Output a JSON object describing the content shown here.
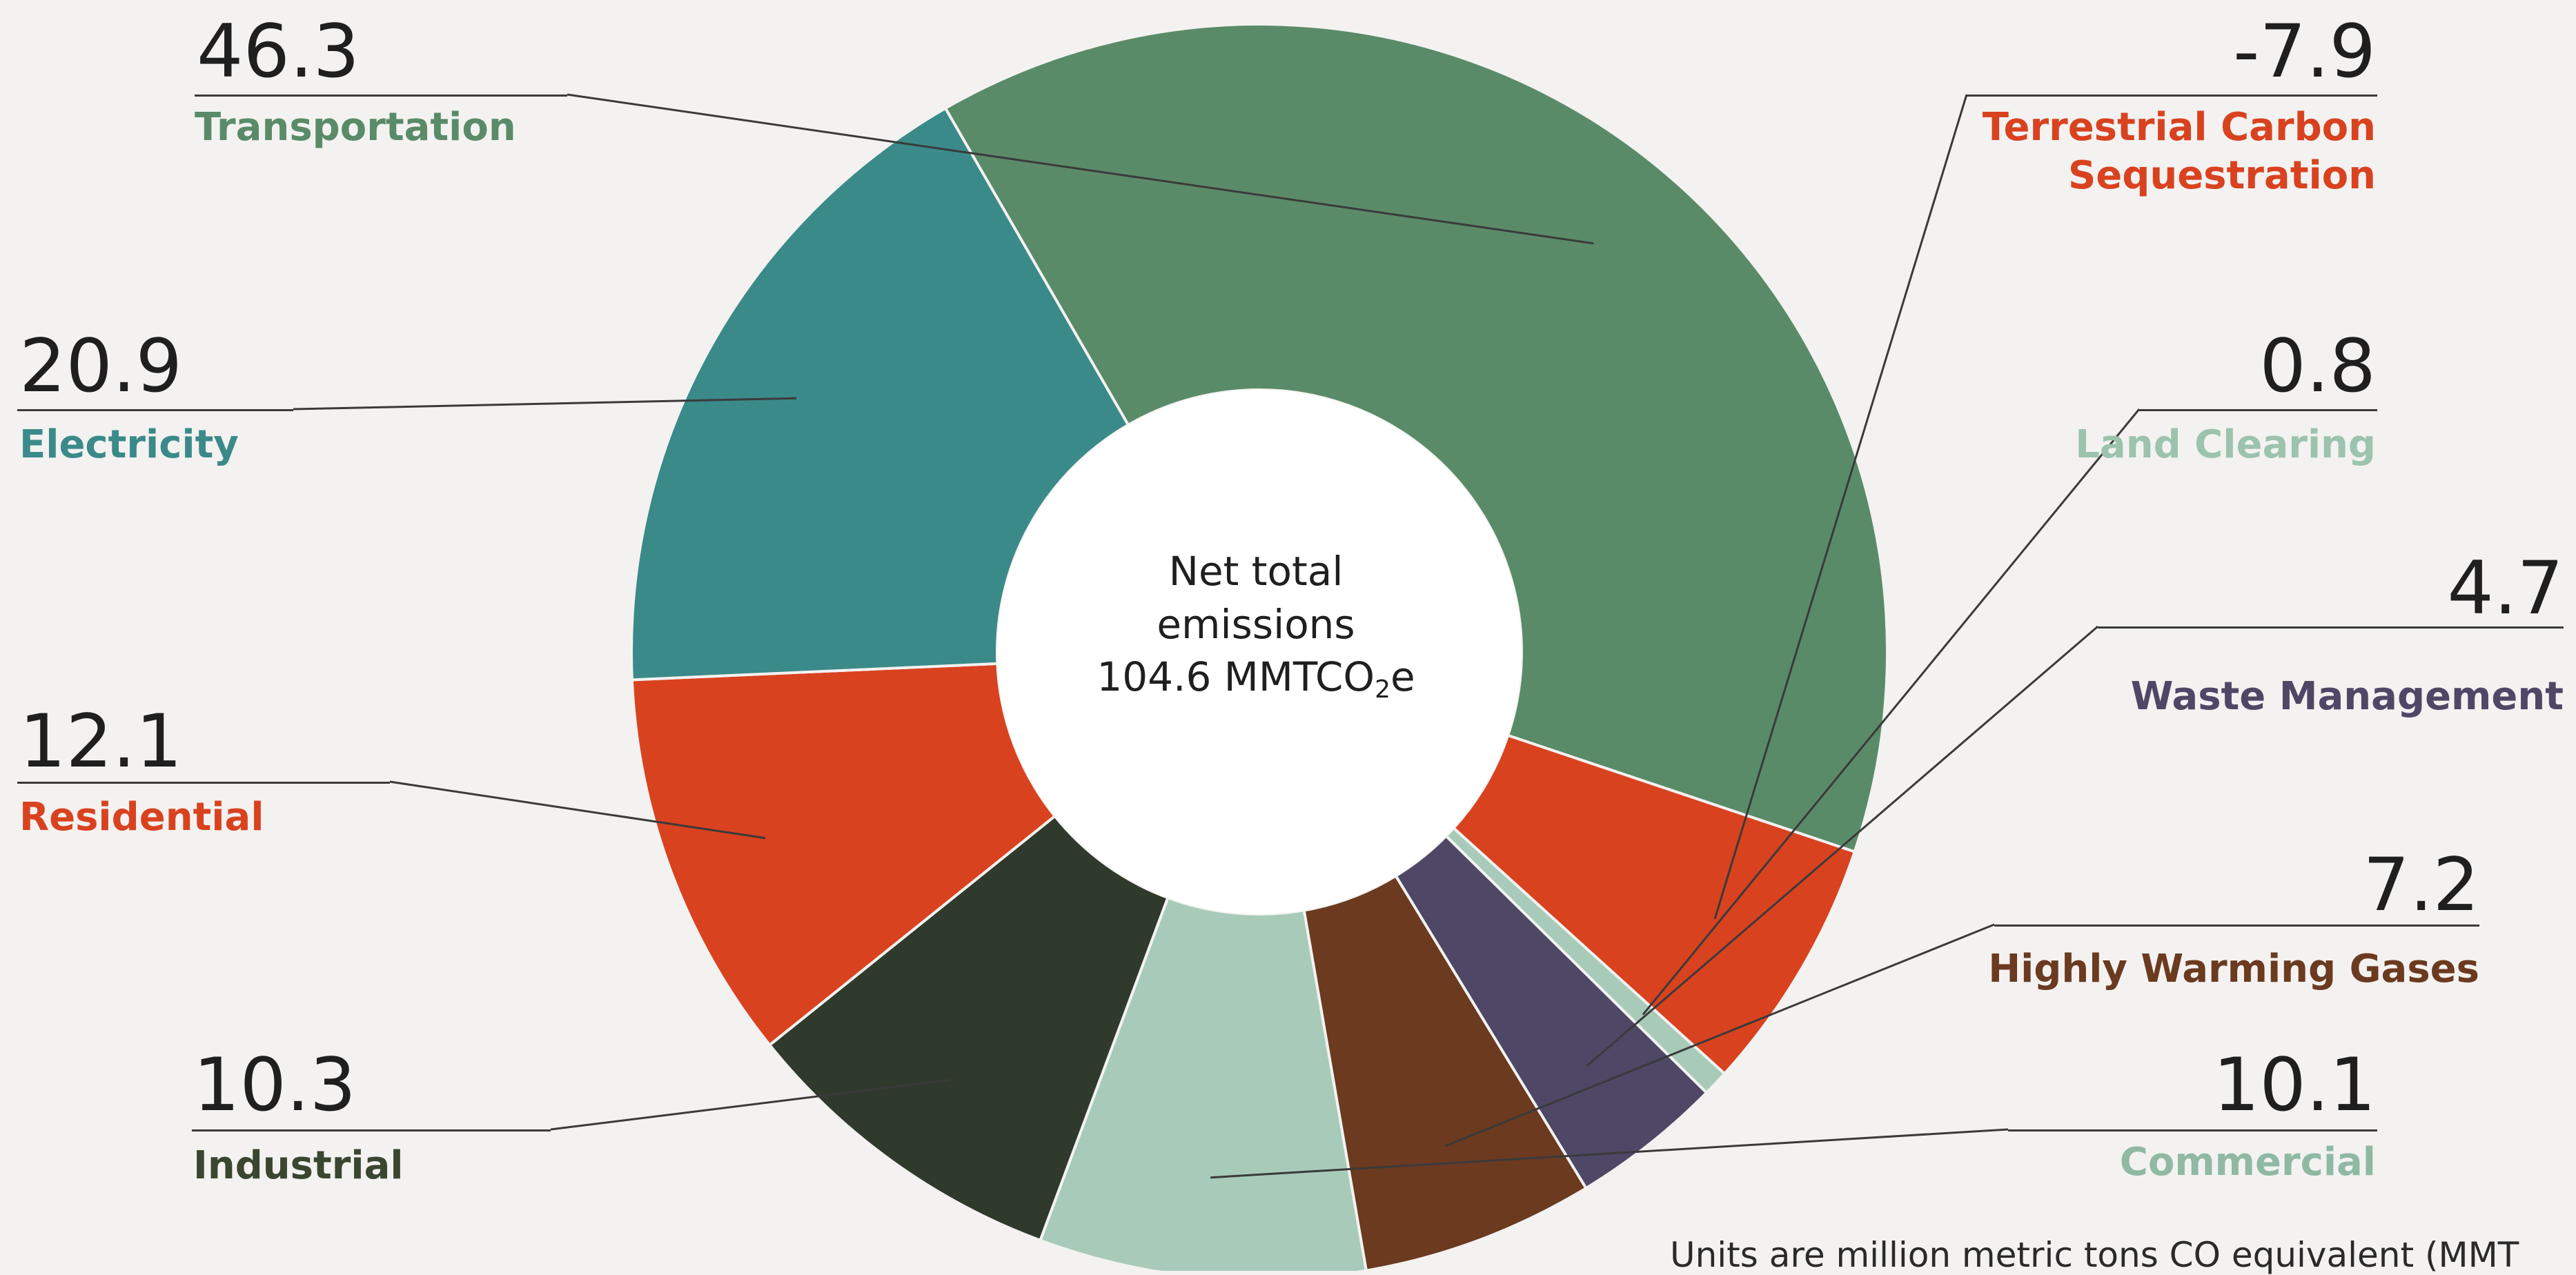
{
  "chart_data": {
    "type": "pie",
    "variant": "donut",
    "center_label": {
      "line1": "Net total",
      "line2": "emissions",
      "line3_prefix": "104.6 MMTCO",
      "line3_sub": "2",
      "line3_suffix": "e"
    },
    "units_note": "Units are million metric tons CO equivalent (MMT",
    "slices": [
      {
        "label": "Transportation",
        "value": 46.3,
        "value_text": "46.3",
        "color": "#5a8b68"
      },
      {
        "label": "Terrestrial Carbon Sequestration",
        "label_line1": "Terrestrial Carbon",
        "label_line2": "Sequestration",
        "value": -7.9,
        "value_text": "-7.9",
        "color": "#d9421f"
      },
      {
        "label": "Land Clearing",
        "value": 0.8,
        "value_text": "0.8",
        "color": "#a7cbb8"
      },
      {
        "label": "Waste Management",
        "value": 4.7,
        "value_text": "4.7",
        "color": "#4e4866"
      },
      {
        "label": "Highly Warming Gases",
        "value": 7.2,
        "value_text": "7.2",
        "color": "#6b3a1f"
      },
      {
        "label": "Commercial",
        "value": 10.1,
        "value_text": "10.1",
        "color": "#a7cbb8"
      },
      {
        "label": "Industrial",
        "value": 10.3,
        "value_text": "10.3",
        "color": "#2f3a2c"
      },
      {
        "label": "Residential",
        "value": 12.1,
        "value_text": "12.1",
        "color": "#d9421f"
      },
      {
        "label": "Electricity",
        "value": 20.9,
        "value_text": "20.9",
        "color": "#3b8a8a"
      }
    ],
    "label_colors": {
      "Transportation": "#5a8b68",
      "Terrestrial Carbon Sequestration": "#d9421f",
      "Land Clearing": "#9cc3ad",
      "Waste Management": "#4e4866",
      "Highly Warming Gases": "#6b3a1f",
      "Commercial": "#8fb9a3",
      "Industrial": "#3a4630",
      "Residential": "#d9421f",
      "Electricity": "#3b8a8a"
    }
  }
}
